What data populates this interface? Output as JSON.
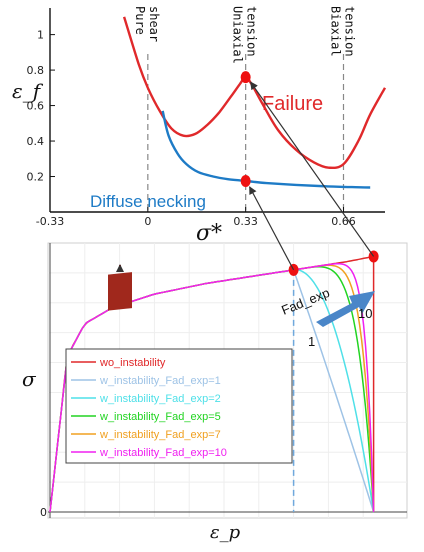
{
  "chart_data": [
    {
      "type": "line",
      "ylabel": "ε_f",
      "xlabel": "σ*",
      "xlim": [
        -0.33,
        0.8
      ],
      "ylim": [
        0,
        1.15
      ],
      "xticks": [
        "-0.33",
        "0",
        "0.33",
        "0.66"
      ],
      "yticks": [
        "0.2",
        "0.4",
        "0.6",
        "0.8",
        "1"
      ],
      "reference_lines": [
        {
          "x": 0.0,
          "label": "Pure shear"
        },
        {
          "x": 0.33,
          "label": "Uniaxial tension"
        },
        {
          "x": 0.66,
          "label": "Biaxial tension"
        }
      ],
      "series": [
        {
          "name": "Failure",
          "color": "#e0292b",
          "x": [
            -0.08,
            -0.03,
            0.0,
            0.04,
            0.08,
            0.12,
            0.16,
            0.2,
            0.24,
            0.28,
            0.31,
            0.33,
            0.35,
            0.39,
            0.44,
            0.5,
            0.56,
            0.61,
            0.66,
            0.71,
            0.75,
            0.8
          ],
          "y": [
            1.1,
            0.83,
            0.7,
            0.57,
            0.47,
            0.43,
            0.44,
            0.49,
            0.56,
            0.65,
            0.72,
            0.76,
            0.72,
            0.6,
            0.46,
            0.35,
            0.28,
            0.25,
            0.27,
            0.4,
            0.55,
            0.7
          ]
        },
        {
          "name": "Diffuse necking",
          "color": "#1e7bc6",
          "x": [
            0.05,
            0.07,
            0.1,
            0.13,
            0.17,
            0.22,
            0.27,
            0.33,
            0.4,
            0.5,
            0.6,
            0.7,
            0.75
          ],
          "y": [
            0.57,
            0.43,
            0.33,
            0.27,
            0.225,
            0.2,
            0.185,
            0.175,
            0.163,
            0.153,
            0.145,
            0.14,
            0.138
          ]
        }
      ],
      "markers": [
        {
          "x": 0.33,
          "y": 0.76
        },
        {
          "x": 0.33,
          "y": 0.175
        }
      ]
    },
    {
      "type": "line",
      "ylabel": "σ",
      "xlabel": "ε_p",
      "xlim": [
        0,
        1
      ],
      "ylim": [
        0,
        1
      ],
      "ytick_origin": "0",
      "annotations": [
        "Fad_exp",
        "10",
        "1"
      ],
      "hardening": {
        "x": [
          0,
          0.05,
          0.1,
          0.18,
          0.3,
          0.45,
          0.6,
          0.7,
          0.85,
          0.93
        ],
        "y": [
          0,
          0.58,
          0.7,
          0.76,
          0.81,
          0.85,
          0.88,
          0.9,
          0.93,
          0.95
        ]
      },
      "necking_onset": {
        "x": 0.7,
        "y": 0.9
      },
      "failure_point": {
        "x": 0.93,
        "y": 0.95
      },
      "series": [
        {
          "name": "wo_instability",
          "color": "#e0282a",
          "fad_exp": null
        },
        {
          "name": "w_instability_Fad_exp=1",
          "color": "#9ec3e6",
          "fad_exp": 1
        },
        {
          "name": "w_instability_Fad_exp=2",
          "color": "#4fe0e8",
          "fad_exp": 2
        },
        {
          "name": "w_instability_Fad_exp=5",
          "color": "#22d422",
          "fad_exp": 5
        },
        {
          "name": "w_instability_Fad_exp=7",
          "color": "#f0a020",
          "fad_exp": 7
        },
        {
          "name": "w_instability_Fad_exp=10",
          "color": "#f020f0",
          "fad_exp": 10
        }
      ]
    }
  ]
}
